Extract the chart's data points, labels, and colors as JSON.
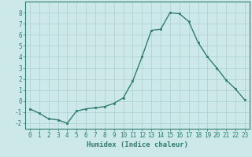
{
  "x": [
    0,
    1,
    2,
    3,
    4,
    5,
    6,
    7,
    8,
    9,
    10,
    11,
    12,
    13,
    14,
    15,
    16,
    17,
    18,
    19,
    20,
    21,
    22,
    23
  ],
  "y": [
    -0.7,
    -1.1,
    -1.6,
    -1.7,
    -2.0,
    -0.9,
    -0.7,
    -0.6,
    -0.5,
    -0.2,
    0.3,
    1.8,
    4.0,
    6.4,
    6.5,
    8.0,
    7.9,
    7.2,
    5.3,
    4.0,
    3.0,
    1.9,
    1.1,
    0.1
  ],
  "xlabel": "Humidex (Indice chaleur)",
  "ylim": [
    -2.5,
    9.0
  ],
  "xlim": [
    -0.5,
    23.5
  ],
  "yticks": [
    -2,
    -1,
    0,
    1,
    2,
    3,
    4,
    5,
    6,
    7,
    8
  ],
  "xticks": [
    0,
    1,
    2,
    3,
    4,
    5,
    6,
    7,
    8,
    9,
    10,
    11,
    12,
    13,
    14,
    15,
    16,
    17,
    18,
    19,
    20,
    21,
    22,
    23
  ],
  "line_color": "#2e7d6e",
  "marker_color": "#2e7d6e",
  "bg_color": "#cce8e8",
  "grid_color": "#aacfcf",
  "tick_fontsize": 5.5,
  "xlabel_fontsize": 6.5
}
